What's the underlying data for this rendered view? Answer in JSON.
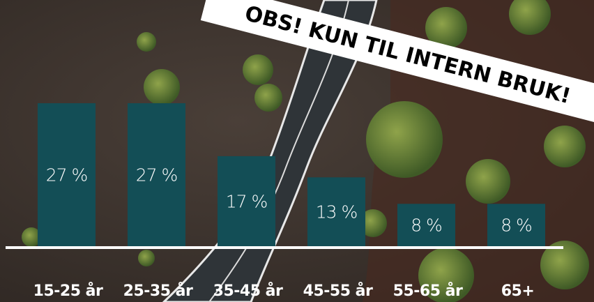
{
  "chart_data": {
    "type": "bar",
    "annotation": "OBS! KUN TIL INTERN BRUK!",
    "categories": [
      "15-25 år",
      "25-35 år",
      "35-45 år",
      "45-55 år",
      "55-65 år",
      "65+"
    ],
    "values": [
      27,
      27,
      17,
      13,
      8,
      8
    ],
    "value_labels": [
      "27 %",
      "27 %",
      "17 %",
      "13 %",
      "8 %",
      "8 %"
    ],
    "color": "#134e56"
  }
}
